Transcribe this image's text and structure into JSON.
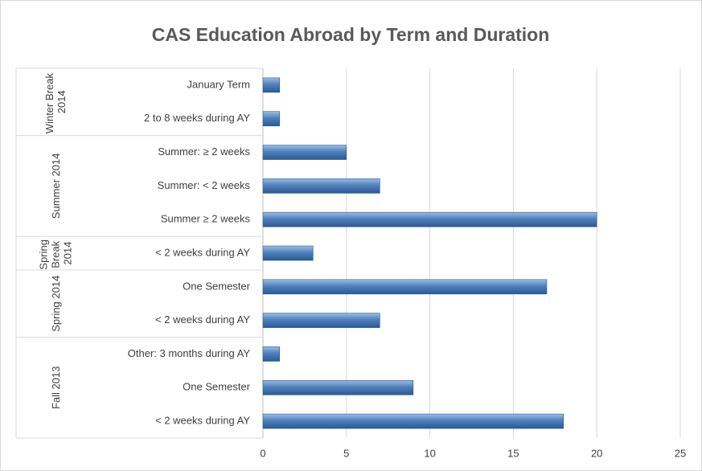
{
  "chart_data": {
    "type": "bar",
    "orientation": "horizontal",
    "title": "CAS Education Abroad by Term and Duration",
    "color": "#4f81bd",
    "grid": true,
    "xlim": [
      0,
      25
    ],
    "xticks": [
      0,
      5,
      10,
      15,
      20,
      25
    ],
    "groups": [
      {
        "name": "Winter Break 2014",
        "categories": [
          "January Term",
          "2 to 8 weeks during AY"
        ],
        "values": [
          1,
          1
        ]
      },
      {
        "name": "Summer 2014",
        "categories": [
          "Summer: ≥ 2 weeks",
          "Summer: < 2 weeks",
          "Summer ≥ 2 weeks"
        ],
        "values": [
          5,
          7,
          20
        ]
      },
      {
        "name": "Spring Break 2014",
        "categories": [
          "< 2 weeks during AY"
        ],
        "values": [
          3
        ]
      },
      {
        "name": "Spring 2014",
        "categories": [
          "One Semester",
          "< 2 weeks during AY"
        ],
        "values": [
          17,
          7
        ]
      },
      {
        "name": "Fall 2013",
        "categories": [
          "Other: 3 months during AY",
          "One Semester",
          "< 2 weeks during AY"
        ],
        "values": [
          1,
          9,
          18
        ]
      }
    ]
  }
}
